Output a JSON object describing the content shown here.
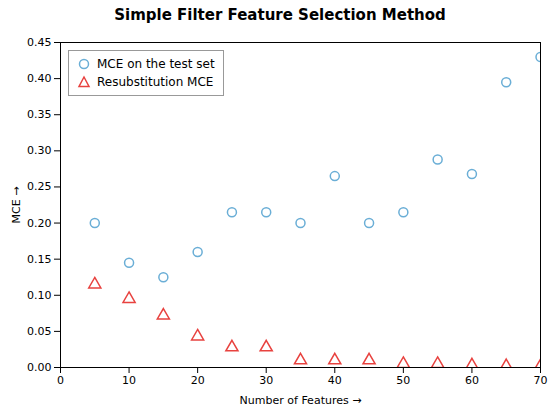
{
  "chart_data": {
    "type": "scatter",
    "title": "Simple Filter Feature Selection Method",
    "xlabel": "Number of Features",
    "ylabel": "MCE",
    "xlim": [
      0,
      70
    ],
    "ylim": [
      0,
      0.45
    ],
    "xticks": [
      0,
      10,
      20,
      30,
      40,
      50,
      60,
      70
    ],
    "yticks": [
      {
        "value": 0,
        "label": "0.00"
      },
      {
        "value": 0.05,
        "label": "0.05"
      },
      {
        "value": 0.1,
        "label": "0.10"
      },
      {
        "value": 0.15,
        "label": "0.15"
      },
      {
        "value": 0.2,
        "label": "0.20"
      },
      {
        "value": 0.25,
        "label": "0.25"
      },
      {
        "value": 0.3,
        "label": "0.30"
      },
      {
        "value": 0.35,
        "label": "0.35"
      },
      {
        "value": 0.4,
        "label": "0.40"
      },
      {
        "value": 0.45,
        "label": "0.45"
      }
    ],
    "x": [
      5,
      10,
      15,
      20,
      25,
      30,
      35,
      40,
      45,
      50,
      55,
      60,
      65,
      70
    ],
    "series": [
      {
        "name": "MCE on the test set",
        "color": "#6AAED6",
        "marker": "circle",
        "values": [
          0.2,
          0.145,
          0.125,
          0.16,
          0.215,
          0.215,
          0.2,
          0.265,
          0.2,
          0.215,
          0.288,
          0.268,
          0.395,
          0.43
        ]
      },
      {
        "name": "Resubstitution MCE",
        "color": "#E8423F",
        "marker": "triangle",
        "values": [
          0.115,
          0.095,
          0.072,
          0.043,
          0.028,
          0.028,
          0.01,
          0.01,
          0.01,
          0.005,
          0.005,
          0.003,
          0.002,
          0.002
        ]
      }
    ],
    "grid": false,
    "legend": "upper left"
  }
}
